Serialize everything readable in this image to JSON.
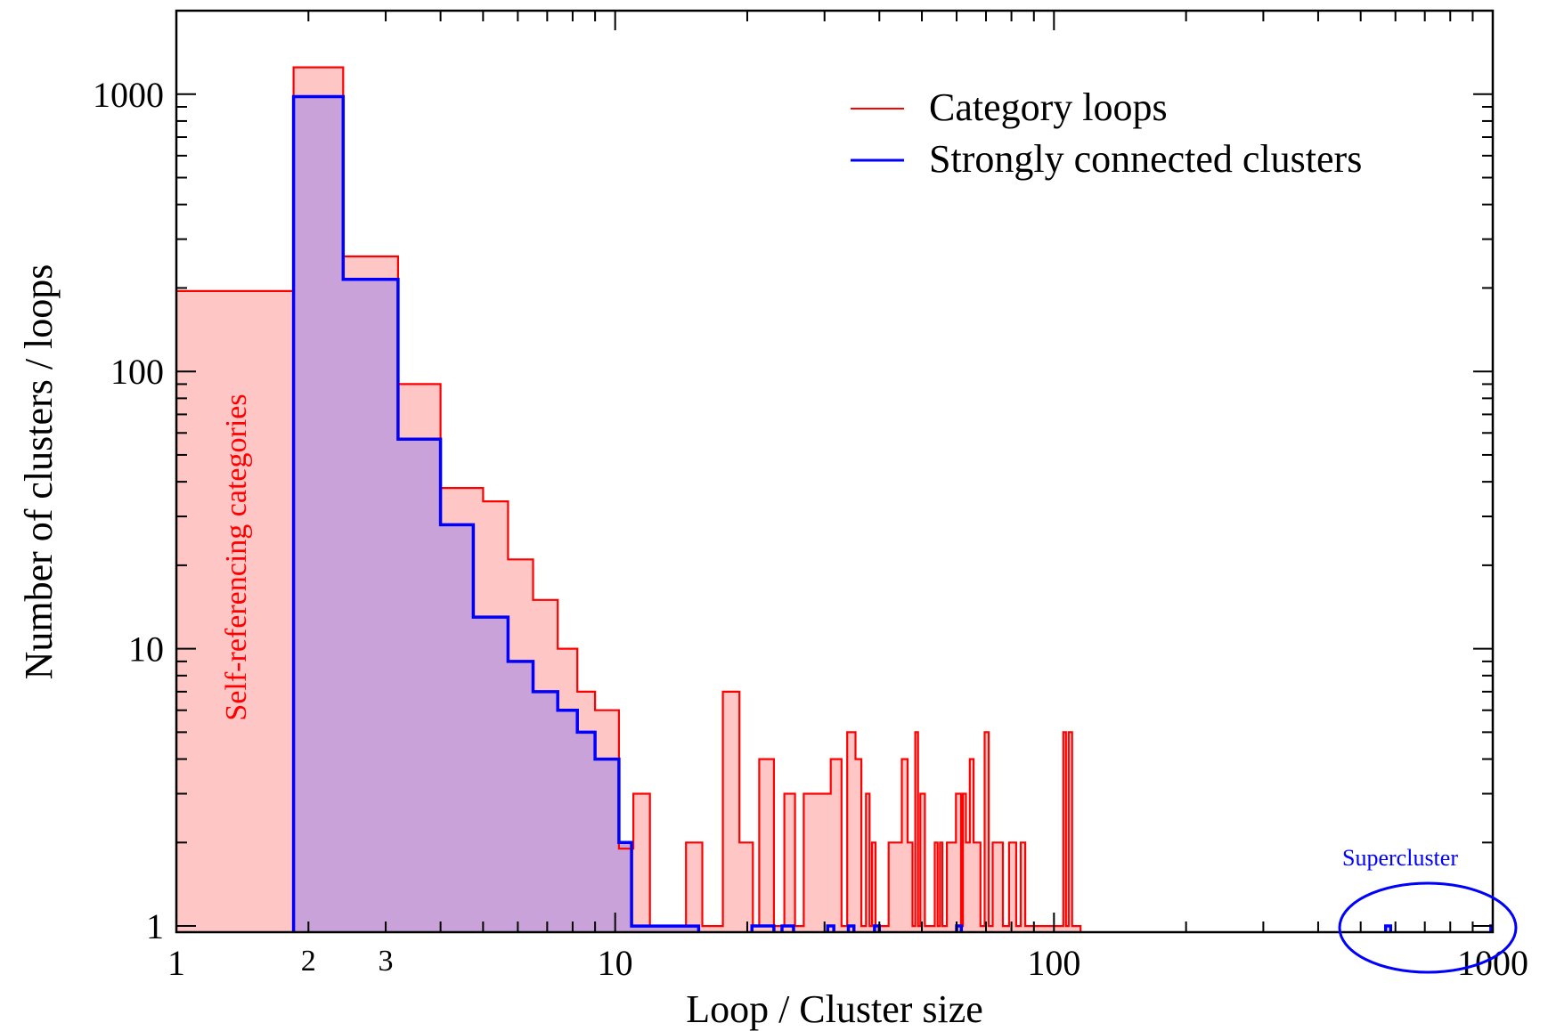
{
  "chart_data": {
    "type": "histogram",
    "xlabel": "Loop / Cluster size",
    "ylabel": "Number of clusters / loops",
    "xscale": "log",
    "yscale": "log",
    "xlim": [
      1,
      1000
    ],
    "ylim": [
      0.95,
      2000
    ],
    "x_ticks": [
      {
        "value": 1,
        "label": "1",
        "size": "large"
      },
      {
        "value": 2,
        "label": "2",
        "size": "small"
      },
      {
        "value": 3,
        "label": "3",
        "size": "small"
      },
      {
        "value": 10,
        "label": "10",
        "size": "large"
      },
      {
        "value": 100,
        "label": "100",
        "size": "large"
      },
      {
        "value": 1000,
        "label": "1000",
        "size": "large"
      }
    ],
    "y_ticks": [
      {
        "value": 1,
        "label": "1"
      },
      {
        "value": 10,
        "label": "10"
      },
      {
        "value": 100,
        "label": "100"
      },
      {
        "value": 1000,
        "label": "1000"
      }
    ],
    "legend": {
      "placement": "top-right"
    },
    "series": [
      {
        "name": "Category loops",
        "color": "#ff0000",
        "fill": "#ffc6c6",
        "steps": [
          [
            1,
            195
          ],
          [
            1.85,
            1250
          ],
          [
            2.4,
            260
          ],
          [
            3.2,
            90
          ],
          [
            4.0,
            38
          ],
          [
            5.0,
            34
          ],
          [
            5.7,
            21
          ],
          [
            6.5,
            15
          ],
          [
            7.4,
            10
          ],
          [
            8.2,
            7
          ],
          [
            9.0,
            6
          ],
          [
            10.2,
            1.9
          ],
          [
            11.0,
            3
          ],
          [
            12.0,
            1
          ],
          [
            14.5,
            2
          ],
          [
            15.8,
            1
          ],
          [
            17.6,
            7
          ],
          [
            19.2,
            2
          ],
          [
            20.6,
            1
          ],
          [
            21.3,
            4
          ],
          [
            23.0,
            1
          ],
          [
            24.3,
            3
          ],
          [
            25.7,
            1
          ],
          [
            26.9,
            3
          ],
          [
            31.0,
            4
          ],
          [
            32.8,
            1
          ],
          [
            33.8,
            5
          ],
          [
            35.3,
            4
          ],
          [
            36.4,
            1
          ],
          [
            37.3,
            3
          ],
          [
            38.0,
            1
          ],
          [
            38.5,
            2
          ],
          [
            39.2,
            1
          ],
          [
            42.0,
            2
          ],
          [
            45.0,
            4
          ],
          [
            46.4,
            2
          ],
          [
            47.6,
            1
          ],
          [
            48.3,
            5
          ],
          [
            49.0,
            1
          ],
          [
            49.6,
            3
          ],
          [
            50.8,
            1
          ],
          [
            53.5,
            2
          ],
          [
            54.3,
            1
          ],
          [
            55.0,
            2
          ],
          [
            55.7,
            1
          ],
          [
            57.0,
            2
          ],
          [
            59.8,
            3
          ],
          [
            61.4,
            1
          ],
          [
            62.0,
            3
          ],
          [
            63.0,
            2
          ],
          [
            64.3,
            4
          ],
          [
            65.6,
            2
          ],
          [
            68.0,
            1
          ],
          [
            69.5,
            5
          ],
          [
            71.0,
            1
          ],
          [
            72.5,
            2
          ],
          [
            76.5,
            1
          ],
          [
            79.0,
            2
          ],
          [
            82.0,
            1
          ],
          [
            84.0,
            2
          ],
          [
            86.0,
            1
          ],
          [
            105.0,
            5
          ],
          [
            106.5,
            1
          ],
          [
            108.0,
            5
          ],
          [
            110.0,
            1
          ],
          [
            115.0
          ]
        ]
      },
      {
        "name": "Strongly connected clusters",
        "color": "#0000ff",
        "fill": "#c8a2d8",
        "steps": [
          [
            1.85,
            980
          ],
          [
            2.4,
            215
          ],
          [
            3.2,
            57
          ],
          [
            4.0,
            28
          ],
          [
            4.75,
            13
          ],
          [
            5.7,
            9
          ],
          [
            6.5,
            7
          ],
          [
            7.4,
            6
          ],
          [
            8.2,
            5
          ],
          [
            9.0,
            4
          ],
          [
            10.2,
            2
          ],
          [
            10.9,
            1
          ],
          [
            15.5
          ]
        ],
        "extra_bars": [
          [
            20.5,
            23.0,
            1
          ],
          [
            24.0,
            25.5,
            1
          ],
          [
            30.5,
            31.5,
            1
          ],
          [
            34.0,
            35.0,
            1
          ],
          [
            39.0,
            40.0,
            1
          ],
          [
            60.0,
            61.5,
            1
          ],
          [
            570,
            585,
            1
          ],
          [
            990,
            1005,
            1
          ]
        ]
      }
    ],
    "annotations": {
      "self_ref": "Self-referencing categories",
      "supercluster": "Supercluster"
    }
  }
}
